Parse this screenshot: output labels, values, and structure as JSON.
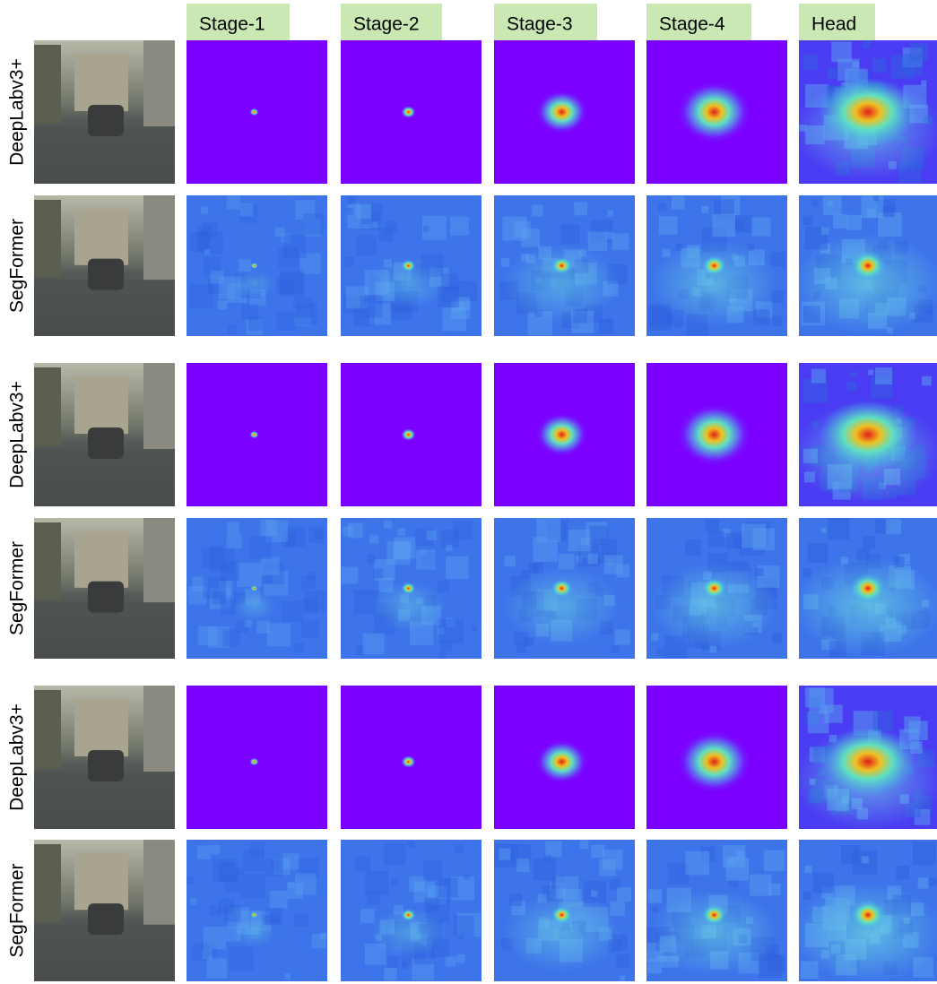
{
  "column_headers": [
    "Stage-1",
    "Stage-2",
    "Stage-3",
    "Stage-4",
    "Head"
  ],
  "row_labels": [
    "DeepLabv3+",
    "SegFormer",
    "DeepLabv3+",
    "SegFormer",
    "DeepLabv3+",
    "SegFormer"
  ]
}
